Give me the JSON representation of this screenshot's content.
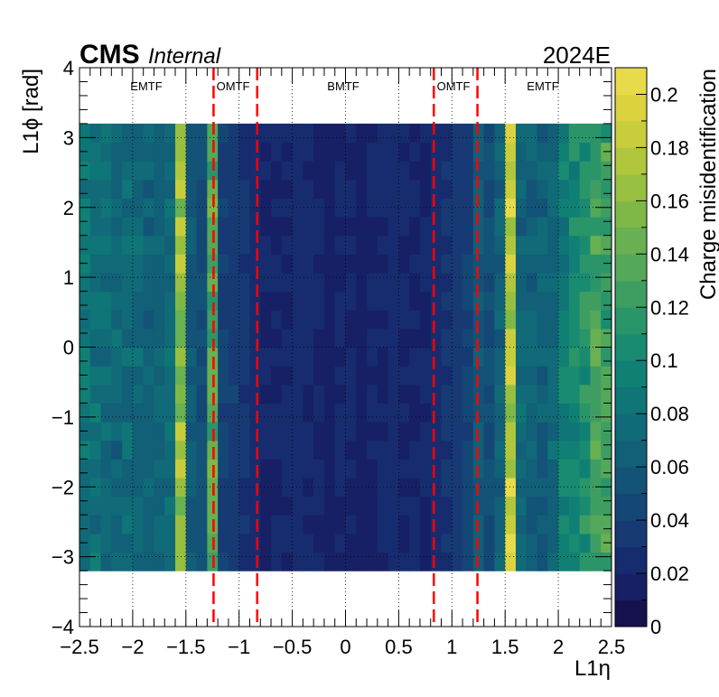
{
  "header": {
    "experiment": "CMS",
    "status": "Internal",
    "run_period": "2024E"
  },
  "regions": [
    "EMTF",
    "OMTF",
    "BMTF",
    "OMTF",
    "EMTF"
  ],
  "colorbar": {
    "label": "Charge misidentification",
    "min": 0,
    "max": 0.21,
    "ticks": [
      "0",
      "0.02",
      "0.04",
      "0.06",
      "0.08",
      "0.1",
      "0.12",
      "0.14",
      "0.16",
      "0.18",
      "0.2"
    ],
    "palette": [
      "#16124f",
      "#172064",
      "#162c6e",
      "#173a74",
      "#144776",
      "#135377",
      "#125f78",
      "#106a78",
      "#0f7577",
      "#108075",
      "#198b70",
      "#2a9569",
      "#3e9e62",
      "#53a85a",
      "#68b051",
      "#80b848",
      "#98bf40",
      "#b0c63c",
      "#c7cd3b",
      "#dad33f",
      "#e8db49"
    ]
  },
  "chart_data": {
    "type": "heatmap",
    "xlabel": "L1η",
    "ylabel": "L1ϕ [rad]",
    "xlim": [
      -2.5,
      2.5
    ],
    "ylim": [
      -4,
      4
    ],
    "x_ticks": [
      "−2.5",
      "−2",
      "−1.5",
      "−1",
      "−0.5",
      "0",
      "0.5",
      "1",
      "1.5",
      "2",
      "2.5"
    ],
    "y_ticks": [
      "−4",
      "−3",
      "−2",
      "−1",
      "0",
      "1",
      "2",
      "3",
      "4"
    ],
    "grid": true,
    "region_boundaries_eta": [
      -1.24,
      -0.83,
      0.83,
      1.24
    ],
    "eta_bin_edges": [
      -2.5,
      -2.4,
      -2.3,
      -2.2,
      -2.1,
      -2.0,
      -1.9,
      -1.8,
      -1.7,
      -1.6,
      -1.5,
      -1.4,
      -1.3,
      -1.2,
      -1.1,
      -1.0,
      -0.9,
      -0.8,
      -0.7,
      -0.6,
      -0.5,
      -0.4,
      -0.3,
      -0.2,
      -0.1,
      0.0,
      0.1,
      0.2,
      0.3,
      0.4,
      0.5,
      0.6,
      0.7,
      0.8,
      0.9,
      1.0,
      1.1,
      1.2,
      1.3,
      1.4,
      1.5,
      1.6,
      1.7,
      1.8,
      1.9,
      2.0,
      2.1,
      2.2,
      2.3,
      2.4,
      2.5
    ],
    "phi_range": [
      -3.2,
      3.2
    ],
    "phi_bins": 24,
    "eta_profile": [
      0.085,
      0.08,
      0.075,
      0.07,
      0.075,
      0.07,
      0.065,
      0.07,
      0.075,
      0.165,
      0.06,
      0.05,
      0.135,
      0.04,
      0.035,
      0.03,
      0.025,
      0.02,
      0.02,
      0.02,
      0.025,
      0.02,
      0.02,
      0.015,
      0.02,
      0.02,
      0.015,
      0.02,
      0.02,
      0.025,
      0.02,
      0.02,
      0.02,
      0.025,
      0.03,
      0.035,
      0.04,
      0.06,
      0.05,
      0.065,
      0.185,
      0.07,
      0.065,
      0.065,
      0.07,
      0.09,
      0.1,
      0.11,
      0.13,
      0.125
    ],
    "note_cells": "Cell values follow eta_profile per column with small phi-dependent variation."
  }
}
